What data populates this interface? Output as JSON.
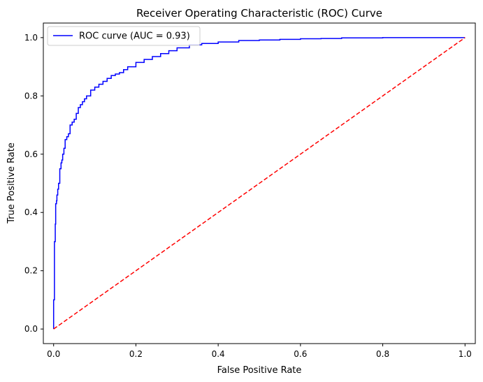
{
  "chart_data": {
    "type": "line",
    "title": "Receiver Operating Characteristic (ROC) Curve",
    "xlabel": "False Positive Rate",
    "ylabel": "True Positive Rate",
    "xlim": [
      -0.025,
      1.025
    ],
    "ylim": [
      -0.05,
      1.05
    ],
    "x_ticks": [
      0.0,
      0.2,
      0.4,
      0.6,
      0.8,
      1.0
    ],
    "y_ticks": [
      0.0,
      0.2,
      0.4,
      0.6,
      0.8,
      1.0
    ],
    "x_tick_labels": [
      "0.0",
      "0.2",
      "0.4",
      "0.6",
      "0.8",
      "1.0"
    ],
    "y_tick_labels": [
      "0.0",
      "0.2",
      "0.4",
      "0.6",
      "0.8",
      "1.0"
    ],
    "grid": false,
    "legend": {
      "placement": "top-left",
      "entries": [
        "ROC curve (AUC = 0.93)"
      ]
    },
    "series": [
      {
        "name": "ROC curve (AUC = 0.93)",
        "color": "#0000ff",
        "style": "solid",
        "x": [
          0.0,
          0.0,
          0.002,
          0.002,
          0.004,
          0.005,
          0.007,
          0.008,
          0.01,
          0.012,
          0.015,
          0.018,
          0.02,
          0.022,
          0.025,
          0.028,
          0.032,
          0.036,
          0.04,
          0.045,
          0.05,
          0.055,
          0.06,
          0.065,
          0.07,
          0.075,
          0.08,
          0.09,
          0.1,
          0.11,
          0.12,
          0.13,
          0.14,
          0.15,
          0.16,
          0.17,
          0.18,
          0.2,
          0.22,
          0.24,
          0.26,
          0.28,
          0.3,
          0.33,
          0.36,
          0.4,
          0.45,
          0.5,
          0.55,
          0.6,
          0.65,
          0.7,
          0.75,
          0.8,
          0.9,
          1.0
        ],
        "y": [
          0.0,
          0.03,
          0.1,
          0.25,
          0.3,
          0.36,
          0.43,
          0.44,
          0.46,
          0.48,
          0.5,
          0.55,
          0.57,
          0.58,
          0.6,
          0.62,
          0.65,
          0.66,
          0.67,
          0.7,
          0.71,
          0.72,
          0.74,
          0.76,
          0.77,
          0.78,
          0.79,
          0.8,
          0.82,
          0.83,
          0.84,
          0.85,
          0.86,
          0.87,
          0.875,
          0.88,
          0.89,
          0.9,
          0.915,
          0.925,
          0.935,
          0.945,
          0.955,
          0.965,
          0.975,
          0.98,
          0.985,
          0.99,
          0.992,
          0.994,
          0.996,
          0.997,
          0.999,
          0.999,
          1.0,
          1.0
        ]
      },
      {
        "name": "",
        "color": "#ff0000",
        "style": "dashed",
        "x": [
          0.0,
          1.0
        ],
        "y": [
          0.0,
          1.0
        ]
      }
    ]
  }
}
